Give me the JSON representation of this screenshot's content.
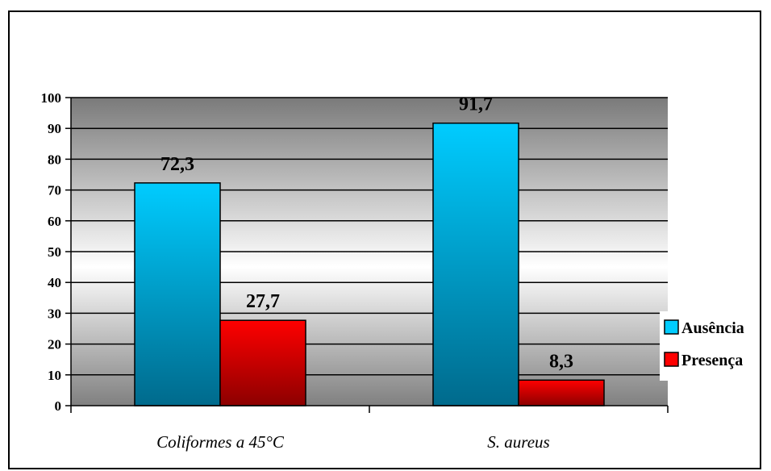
{
  "chart_data": {
    "type": "bar",
    "categories": [
      "Coliformes a 45°C",
      "S. aureus"
    ],
    "series": [
      {
        "name": "Ausência",
        "values": [
          72.3,
          91.7
        ],
        "labels": [
          "72,3",
          "91,7"
        ],
        "color": "#00ccff"
      },
      {
        "name": "Presença",
        "values": [
          27.7,
          8.3
        ],
        "labels": [
          "27,7",
          "8,3"
        ],
        "color": "#ff0000"
      }
    ],
    "ylim": [
      0,
      100
    ],
    "yticks": [
      "0",
      "10",
      "20",
      "30",
      "40",
      "50",
      "60",
      "70",
      "80",
      "90",
      "100"
    ],
    "grid": true,
    "legend_position": "right"
  }
}
